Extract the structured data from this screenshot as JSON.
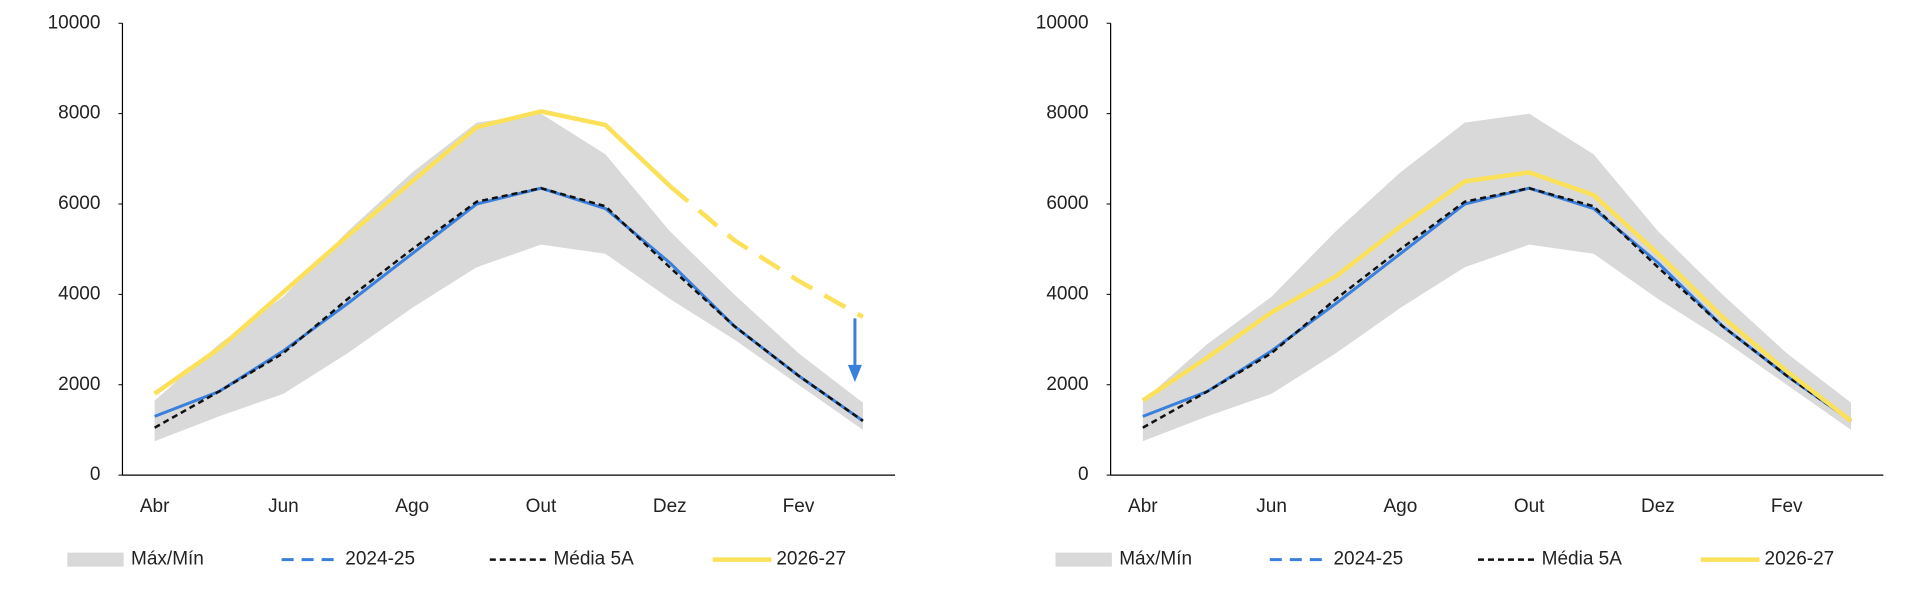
{
  "chart_data": [
    {
      "type": "line",
      "categories": [
        "Abr",
        null,
        "Jun",
        null,
        "Ago",
        null,
        "Out",
        null,
        "Dez",
        null,
        "Fev",
        null
      ],
      "ylim": [
        0,
        10000
      ],
      "yticks": [
        0,
        2000,
        4000,
        6000,
        8000,
        10000
      ],
      "band": {
        "name": "Máx/Mín",
        "color": "#d9d9d9",
        "upper": [
          1650,
          2900,
          3950,
          5400,
          6700,
          7800,
          8000,
          7100,
          5400,
          4000,
          2700,
          1600
        ],
        "lower": [
          750,
          1300,
          1800,
          2700,
          3700,
          4600,
          5100,
          4900,
          3900,
          3000,
          2000,
          1000
        ]
      },
      "series": [
        {
          "name": "2024-25",
          "color": "#3a7fdb",
          "width": 3,
          "values": [
            1300,
            1850,
            2750,
            3800,
            4900,
            6000,
            6350,
            5900,
            4700,
            3300,
            2200,
            1200
          ]
        },
        {
          "name": "Média 5A",
          "color": "#111111",
          "width": 2.5,
          "dash": true,
          "values": [
            1050,
            1850,
            2700,
            3900,
            5000,
            6050,
            6350,
            5950,
            4600,
            3300,
            2200,
            1200
          ]
        },
        {
          "name": "2026-27",
          "color": "#fbe15a",
          "width": 4.5,
          "dash_from": 8,
          "values": [
            1800,
            2800,
            4050,
            5300,
            6500,
            7700,
            8050,
            7750,
            6400,
            5200,
            4300,
            3500
          ]
        }
      ],
      "arrow": true
    },
    {
      "type": "line",
      "categories": [
        "Abr",
        null,
        "Jun",
        null,
        "Ago",
        null,
        "Out",
        null,
        "Dez",
        null,
        "Fev",
        null
      ],
      "ylim": [
        0,
        10000
      ],
      "yticks": [
        0,
        2000,
        4000,
        6000,
        8000,
        10000
      ],
      "band": {
        "name": "Máx/Mín",
        "color": "#d9d9d9",
        "upper": [
          1650,
          2900,
          3950,
          5400,
          6700,
          7800,
          8000,
          7100,
          5400,
          4000,
          2700,
          1600
        ],
        "lower": [
          750,
          1300,
          1800,
          2700,
          3700,
          4600,
          5100,
          4900,
          3900,
          3000,
          2000,
          1000
        ]
      },
      "series": [
        {
          "name": "2024-25",
          "color": "#3a7fdb",
          "width": 3,
          "values": [
            1300,
            1850,
            2750,
            3800,
            4900,
            6000,
            6350,
            5900,
            4700,
            3300,
            2200,
            1200
          ]
        },
        {
          "name": "Média 5A",
          "color": "#111111",
          "width": 2.5,
          "dash": true,
          "values": [
            1050,
            1850,
            2700,
            3900,
            5000,
            6050,
            6350,
            5950,
            4600,
            3300,
            2200,
            1200
          ]
        },
        {
          "name": "2026-27",
          "color": "#fbe15a",
          "width": 4.5,
          "values": [
            1650,
            2600,
            3600,
            4400,
            5500,
            6500,
            6700,
            6200,
            4900,
            3500,
            2300,
            1200
          ]
        }
      ]
    }
  ]
}
